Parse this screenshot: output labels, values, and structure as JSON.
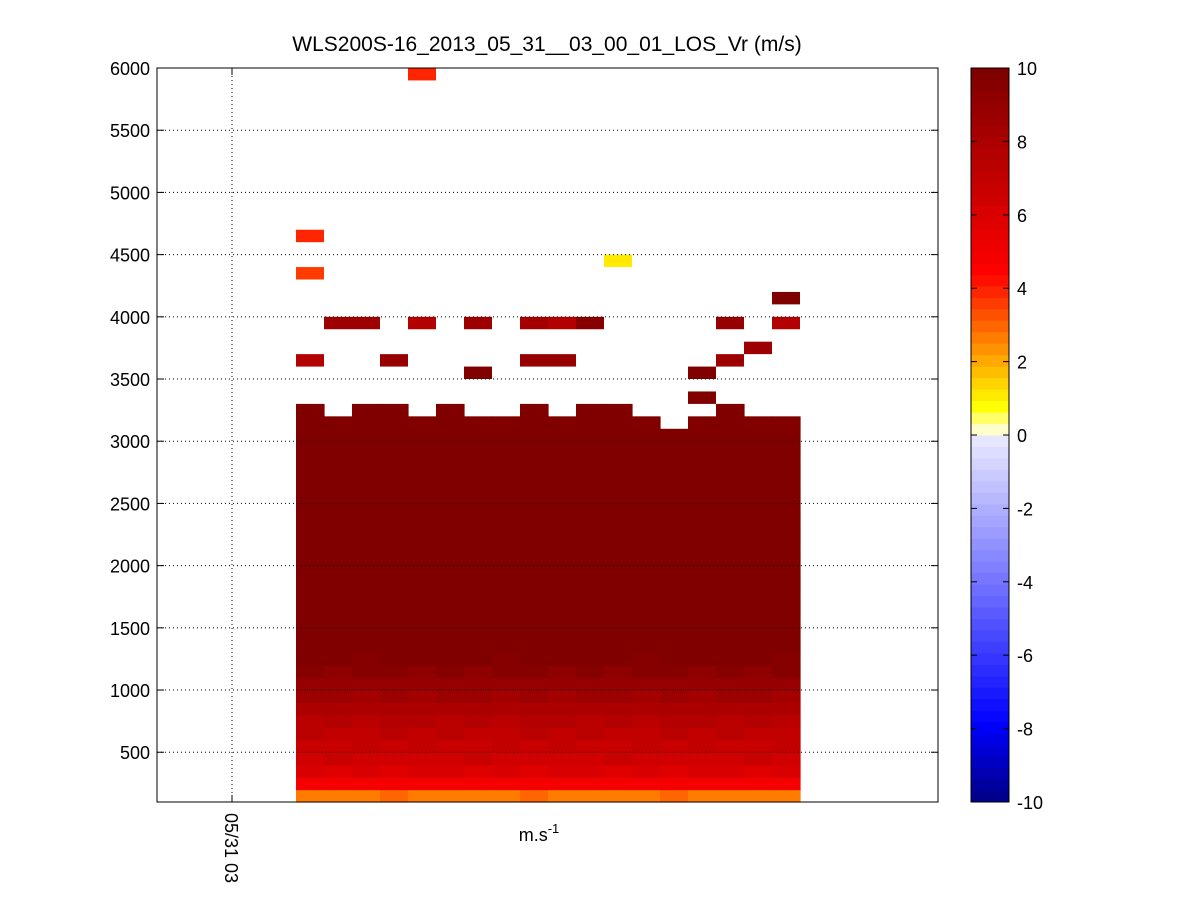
{
  "chart_data": {
    "type": "heatmap",
    "title": "WLS200S-16_2013_05_31__03_00_01_LOS_Vr (m/s)",
    "xlabel": "m.s",
    "xlabel_superscript": "-1",
    "ylabel": "",
    "ylim": [
      100,
      6000
    ],
    "yticks": [
      500,
      1000,
      1500,
      2000,
      2500,
      3000,
      3500,
      4000,
      4500,
      5000,
      5500,
      6000
    ],
    "xticks": [
      "05/31 03"
    ],
    "grid": true,
    "colorbar": {
      "label_ticks": [
        -10,
        -8,
        -6,
        -4,
        -2,
        0,
        2,
        4,
        6,
        8,
        10
      ],
      "range": [
        -10,
        10
      ],
      "colormap": "custom blue-white-yellow-red-darkred",
      "placement": "right"
    },
    "columns": 18,
    "rows": 48,
    "row_start": 100,
    "row_step": 100,
    "column_top_m": [
      3300,
      3200,
      3300,
      3300,
      3200,
      3300,
      3200,
      3200,
      3300,
      3200,
      3300,
      3300,
      3200,
      3100,
      3200,
      3300,
      3200,
      3200
    ],
    "velocity_profile": [
      {
        "height": 100,
        "value": 1.5
      },
      {
        "height": 200,
        "value": 4.0
      },
      {
        "height": 300,
        "value": 5.6
      },
      {
        "height": 400,
        "value": 6.3
      },
      {
        "height": 500,
        "value": 6.7
      },
      {
        "height": 600,
        "value": 7.0
      },
      {
        "height": 700,
        "value": 7.3
      },
      {
        "height": 800,
        "value": 7.7
      },
      {
        "height": 900,
        "value": 8.2
      },
      {
        "height": 1000,
        "value": 8.7
      },
      {
        "height": 1100,
        "value": 9.2
      },
      {
        "height": 1200,
        "value": 9.6
      },
      {
        "height": 1300,
        "value": 9.9
      },
      {
        "height": 1400,
        "value": 10.0
      }
    ],
    "isolated_points": [
      {
        "col": 0,
        "height": 4650,
        "value": 3.8
      },
      {
        "col": 0,
        "height": 4350,
        "value": 3.6
      },
      {
        "col": 0,
        "height": 3650,
        "value": 7.8
      },
      {
        "col": 1,
        "height": 3950,
        "value": 8.6
      },
      {
        "col": 2,
        "height": 3950,
        "value": 8.6
      },
      {
        "col": 3,
        "height": 3650,
        "value": 8.8
      },
      {
        "col": 4,
        "height": 5950,
        "value": 3.8
      },
      {
        "col": 4,
        "height": 3950,
        "value": 7.8
      },
      {
        "col": 6,
        "height": 3950,
        "value": 8.6
      },
      {
        "col": 6,
        "height": 3550,
        "value": 10.0
      },
      {
        "col": 8,
        "height": 3950,
        "value": 8.3
      },
      {
        "col": 8,
        "height": 3650,
        "value": 9.0
      },
      {
        "col": 9,
        "height": 3950,
        "value": 7.8
      },
      {
        "col": 9,
        "height": 3650,
        "value": 9.0
      },
      {
        "col": 10,
        "height": 3950,
        "value": 9.6
      },
      {
        "col": 11,
        "height": 4450,
        "value": 1.0
      },
      {
        "col": 14,
        "height": 3550,
        "value": 10.0
      },
      {
        "col": 14,
        "height": 3350,
        "value": 10.0
      },
      {
        "col": 15,
        "height": 3950,
        "value": 9.0
      },
      {
        "col": 15,
        "height": 3650,
        "value": 8.6
      },
      {
        "col": 16,
        "height": 3750,
        "value": 8.6
      },
      {
        "col": 17,
        "height": 4150,
        "value": 10.0
      },
      {
        "col": 17,
        "height": 3950,
        "value": 7.6
      }
    ]
  }
}
